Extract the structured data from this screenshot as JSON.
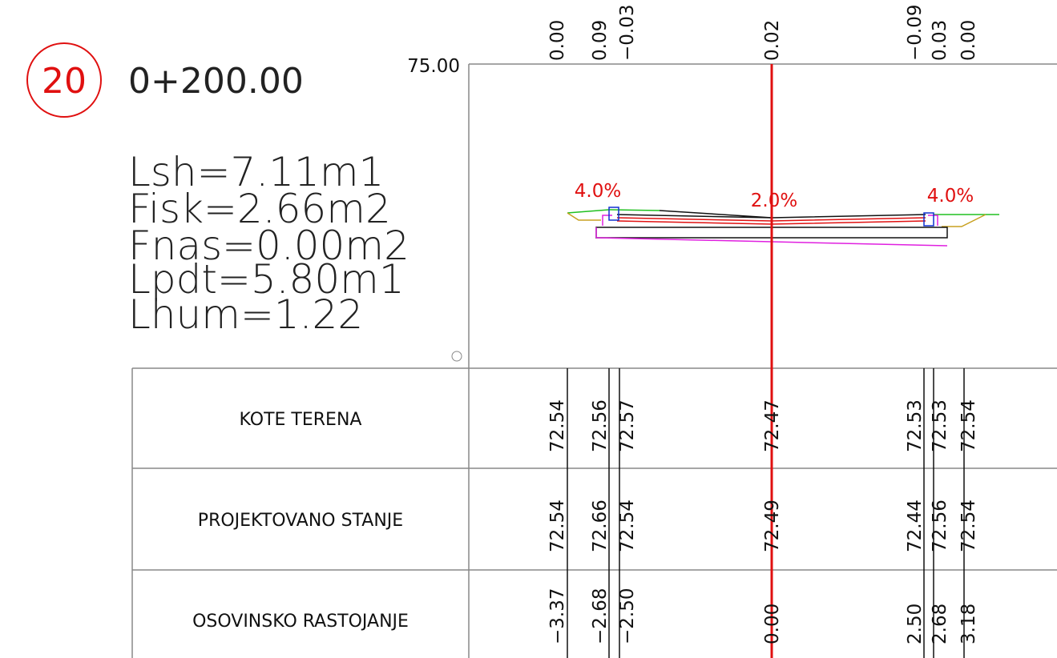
{
  "station": {
    "number": "20",
    "chainage": "0+200.00"
  },
  "stats": [
    "Lsh=7.11m1",
    "Fisk=2.66m2",
    "Fnas=0.00m2",
    "Lpdt=5.80m1",
    "Lhum=1.22"
  ],
  "datum": "75.00",
  "top_labels": [
    "0.00",
    "0.09",
    "−0.03",
    "0.02",
    "−0.09",
    "0.03",
    "0.00"
  ],
  "slopes": [
    "4.0%",
    "2.0%",
    "4.0%"
  ],
  "table": {
    "rows": [
      {
        "label": "KOTE TERENA",
        "values": [
          "72.54",
          "72.56",
          "72.57",
          "72.47",
          "72.53",
          "72.53",
          "72.54"
        ]
      },
      {
        "label": "PROJEKTOVANO STANJE",
        "values": [
          "72.54",
          "72.66",
          "72.54",
          "72.49",
          "72.44",
          "72.56",
          "72.54"
        ]
      },
      {
        "label": "OSOVINSKO RASTOJANJE",
        "values": [
          "−3.37",
          "−2.68",
          "−2.50",
          "0.00",
          "2.50",
          "2.68",
          "3.18"
        ]
      }
    ]
  }
}
